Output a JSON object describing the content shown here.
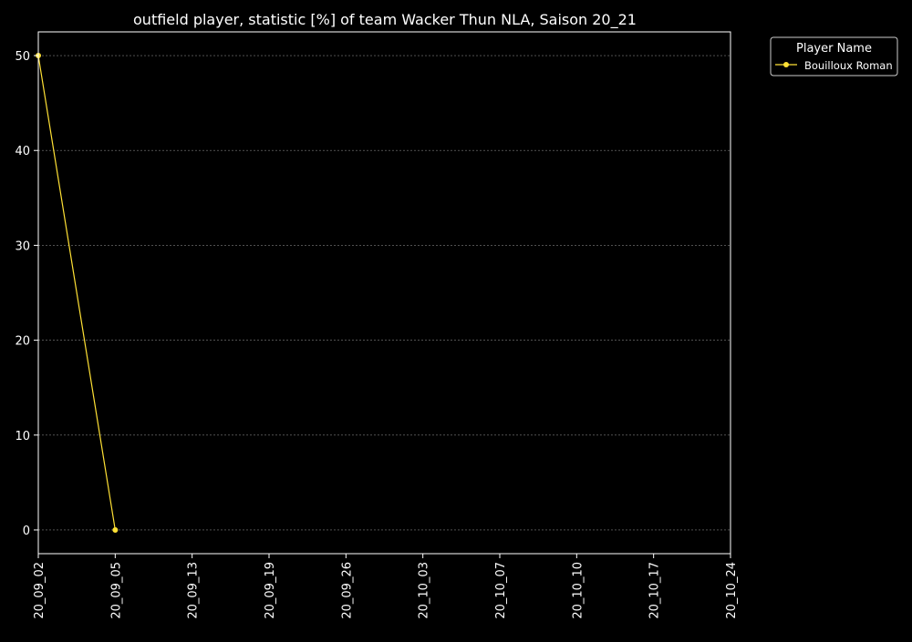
{
  "chart_data": {
    "type": "line",
    "title": "outfield player, statistic [%] of team Wacker Thun NLA, Saison 20_21",
    "xlabel": "",
    "ylabel": "",
    "categories": [
      "20_09_02",
      "20_09_05",
      "20_09_13",
      "20_09_19",
      "20_09_26",
      "20_10_03",
      "20_10_07",
      "20_10_10",
      "20_10_17",
      "20_10_24"
    ],
    "ylim": [
      -2.5,
      52.5
    ],
    "yticks": [
      0,
      10,
      20,
      30,
      40,
      50
    ],
    "grid": "horizontal dashed",
    "legend": {
      "title": "Player Name",
      "placement": "outside top-right"
    },
    "series": [
      {
        "name": "Bouilloux Roman",
        "color": "#ffe135",
        "x": [
          "20_09_02",
          "20_09_05"
        ],
        "values": [
          50,
          0
        ]
      }
    ]
  },
  "colors": {
    "background": "#000000",
    "axes": "#ffffff",
    "grid": "#808080"
  }
}
